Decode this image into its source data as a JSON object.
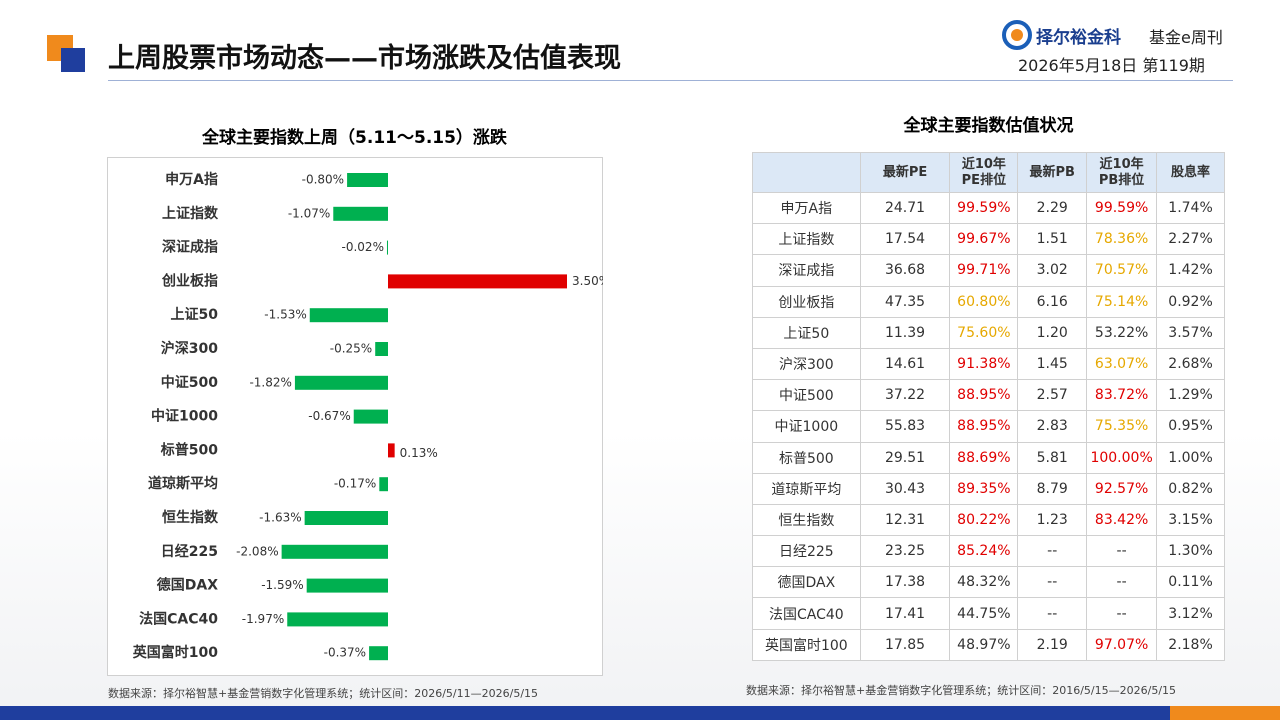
{
  "header": {
    "title": "上周股票市场动态——市场涨跌及估值表现",
    "brand": "择尔裕金科",
    "brand_sub": "基金e周刊",
    "issue": "2026年5月18日  第119期"
  },
  "chart_data": {
    "type": "hbar",
    "title": "全球主要指数上周（5.11～5.15）涨跌",
    "categories": [
      "申万A指",
      "上证指数",
      "深证成指",
      "创业板指",
      "上证50",
      "沪深300",
      "中证500",
      "中证1000",
      "标普500",
      "道琼斯平均",
      "恒生指数",
      "日经225",
      "德国DAX",
      "法国CAC40",
      "英国富时100"
    ],
    "values": [
      -0.8,
      -1.07,
      -0.02,
      3.5,
      -1.53,
      -0.25,
      -1.82,
      -0.67,
      0.13,
      -0.17,
      -1.63,
      -2.08,
      -1.59,
      -1.97,
      -0.37
    ],
    "value_labels": [
      "-0.80%",
      "-1.07%",
      "-0.02%",
      "3.50%",
      "-1.53%",
      "-0.25%",
      "-1.82%",
      "-0.67%",
      "0.13%",
      "-0.17%",
      "-1.63%",
      "-2.08%",
      "-1.59%",
      "-1.97%",
      "-0.37%"
    ],
    "positive_color": "#e00000",
    "negative_color": "#00b050",
    "source": "数据来源：择尔裕智慧+基金营销数字化管理系统；统计区间：2026/5/11—2026/5/15"
  },
  "table": {
    "title": "全球主要指数估值状况",
    "columns": [
      "最新PE",
      [
        "近10年",
        "PE排位"
      ],
      "最新PB",
      [
        "近10年",
        "PB排位"
      ],
      "股息率"
    ],
    "rows": [
      [
        "申万A指",
        "24.71",
        "99.59%",
        "2.29",
        "99.59%",
        "1.74%"
      ],
      [
        "上证指数",
        "17.54",
        "99.67%",
        "1.51",
        "78.36%",
        "2.27%"
      ],
      [
        "深证成指",
        "36.68",
        "99.71%",
        "3.02",
        "70.57%",
        "1.42%"
      ],
      [
        "创业板指",
        "47.35",
        "60.80%",
        "6.16",
        "75.14%",
        "0.92%"
      ],
      [
        "上证50",
        "11.39",
        "75.60%",
        "1.20",
        "53.22%",
        "3.57%"
      ],
      [
        "沪深300",
        "14.61",
        "91.38%",
        "1.45",
        "63.07%",
        "2.68%"
      ],
      [
        "中证500",
        "37.22",
        "88.95%",
        "2.57",
        "83.72%",
        "1.29%"
      ],
      [
        "中证1000",
        "55.83",
        "88.95%",
        "2.83",
        "75.35%",
        "0.95%"
      ],
      [
        "标普500",
        "29.51",
        "88.69%",
        "5.81",
        "100.00%",
        "1.00%"
      ],
      [
        "道琼斯平均",
        "30.43",
        "89.35%",
        "8.79",
        "92.57%",
        "0.82%"
      ],
      [
        "恒生指数",
        "12.31",
        "80.22%",
        "1.23",
        "83.42%",
        "3.15%"
      ],
      [
        "日经225",
        "23.25",
        "85.24%",
        "--",
        "--",
        "1.30%"
      ],
      [
        "德国DAX",
        "17.38",
        "48.32%",
        "--",
        "--",
        "0.11%"
      ],
      [
        "法国CAC40",
        "17.41",
        "44.75%",
        "--",
        "--",
        "3.12%"
      ],
      [
        "英国富时100",
        "17.85",
        "48.97%",
        "2.19",
        "97.07%",
        "2.18%"
      ]
    ],
    "cell_colors": [
      [
        null,
        null,
        "#e00000",
        null,
        "#e00000",
        null
      ],
      [
        null,
        null,
        "#e00000",
        null,
        "#e6a800",
        null
      ],
      [
        null,
        null,
        "#e00000",
        null,
        "#e6a800",
        null
      ],
      [
        null,
        null,
        "#e6a800",
        null,
        "#e6a800",
        null
      ],
      [
        null,
        null,
        "#e6a800",
        null,
        null,
        null
      ],
      [
        null,
        null,
        "#e00000",
        null,
        "#e6a800",
        null
      ],
      [
        null,
        null,
        "#e00000",
        null,
        "#e00000",
        null
      ],
      [
        null,
        null,
        "#e00000",
        null,
        "#e6a800",
        null
      ],
      [
        null,
        null,
        "#e00000",
        null,
        "#e00000",
        null
      ],
      [
        null,
        null,
        "#e00000",
        null,
        "#e00000",
        null
      ],
      [
        null,
        null,
        "#e00000",
        null,
        "#e00000",
        null
      ],
      [
        null,
        null,
        "#e00000",
        null,
        null,
        null
      ],
      [
        null,
        null,
        null,
        null,
        null,
        null
      ],
      [
        null,
        null,
        null,
        null,
        null,
        null
      ],
      [
        null,
        null,
        null,
        null,
        "#e00000",
        null
      ]
    ],
    "source": "数据来源：择尔裕智慧+基金营销数字化管理系统；统计区间：2016/5/15—2026/5/15"
  }
}
